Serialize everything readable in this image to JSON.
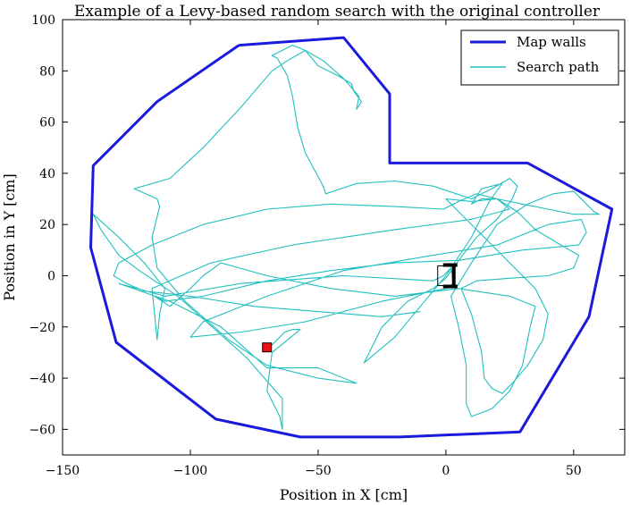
{
  "chart_data": {
    "type": "line",
    "title": "Example of a Levy-based random search with the original controller",
    "xlabel": "Position in X [cm]",
    "ylabel": "Position in Y [cm]",
    "xlim": [
      -150,
      70
    ],
    "ylim": [
      -70,
      100
    ],
    "xticks": [
      -150,
      -100,
      -50,
      0,
      50
    ],
    "yticks": [
      -60,
      -40,
      -20,
      0,
      20,
      40,
      60,
      80,
      100
    ],
    "grid": false,
    "legend_position": "top-right",
    "colors": {
      "walls": "#1a1adc",
      "path": "#20bfbf",
      "start": "#ee1111",
      "robot": "#000000"
    },
    "series": [
      {
        "name": "Map walls",
        "points": [
          [
            -81,
            90
          ],
          [
            -40,
            93
          ],
          [
            -22,
            71
          ],
          [
            -22,
            44
          ],
          [
            32,
            44
          ],
          [
            65,
            26
          ],
          [
            56,
            -16
          ],
          [
            29,
            -61
          ],
          [
            -18,
            -63
          ],
          [
            -57,
            -63
          ],
          [
            -90,
            -56
          ],
          [
            -129,
            -26
          ],
          [
            -139,
            11
          ],
          [
            -138,
            43
          ],
          [
            -113,
            68
          ],
          [
            -81,
            90
          ]
        ]
      },
      {
        "name": "Search path",
        "points": [
          [
            -70,
            -28
          ],
          [
            -68,
            -27
          ],
          [
            -66,
            -25
          ],
          [
            -63,
            -22
          ],
          [
            -60,
            -21
          ],
          [
            -57,
            -21
          ],
          [
            -68,
            -30
          ],
          [
            -70,
            -45
          ],
          [
            -65,
            -55
          ],
          [
            -64,
            -60
          ],
          [
            -64,
            -48
          ],
          [
            -78,
            -32
          ],
          [
            -105,
            -8
          ],
          [
            -120,
            2
          ],
          [
            -128,
            8
          ],
          [
            -135,
            18
          ],
          [
            -138,
            24
          ],
          [
            -128,
            15
          ],
          [
            -118,
            5
          ],
          [
            -110,
            -5
          ],
          [
            -112,
            -15
          ],
          [
            -113,
            -25
          ],
          [
            -115,
            -5
          ],
          [
            -92,
            5
          ],
          [
            -60,
            12
          ],
          [
            -20,
            18
          ],
          [
            10,
            22
          ],
          [
            25,
            26
          ],
          [
            20,
            30
          ],
          [
            14,
            30
          ],
          [
            10,
            28
          ],
          [
            14,
            34
          ],
          [
            22,
            36
          ],
          [
            17,
            29
          ],
          [
            10,
            15
          ],
          [
            0,
            0
          ],
          [
            -10,
            -12
          ],
          [
            -20,
            -24
          ],
          [
            -32,
            -34
          ],
          [
            -25,
            -20
          ],
          [
            -15,
            -10
          ],
          [
            -5,
            -5
          ],
          [
            0,
            -1
          ],
          [
            5,
            6
          ],
          [
            12,
            15
          ],
          [
            20,
            22
          ],
          [
            26,
            30
          ],
          [
            28,
            35
          ],
          [
            25,
            38
          ],
          [
            18,
            34
          ],
          [
            10,
            30
          ],
          [
            -5,
            35
          ],
          [
            -20,
            37
          ],
          [
            -35,
            36
          ],
          [
            -47,
            32
          ],
          [
            -48,
            35
          ],
          [
            -55,
            48
          ],
          [
            -58,
            58
          ],
          [
            -60,
            70
          ],
          [
            -62,
            78
          ],
          [
            -66,
            85
          ],
          [
            -68,
            86
          ],
          [
            -60,
            90
          ],
          [
            -55,
            88
          ],
          [
            -50,
            82
          ],
          [
            -42,
            78
          ],
          [
            -37,
            75
          ],
          [
            -36,
            72
          ],
          [
            -33,
            68
          ],
          [
            -35,
            65
          ],
          [
            -34,
            70
          ],
          [
            -40,
            77
          ],
          [
            -48,
            84
          ],
          [
            -55,
            88
          ],
          [
            -62,
            84
          ],
          [
            -68,
            80
          ],
          [
            -80,
            66
          ],
          [
            -95,
            50
          ],
          [
            -108,
            38
          ],
          [
            -122,
            34
          ],
          [
            -113,
            30
          ],
          [
            -112,
            27
          ],
          [
            -115,
            15
          ],
          [
            -113,
            3
          ],
          [
            -108,
            -3
          ],
          [
            -102,
            -10
          ],
          [
            -85,
            -25
          ],
          [
            -70,
            -35
          ],
          [
            -50,
            -40
          ],
          [
            -35,
            -42
          ],
          [
            -50,
            -36
          ],
          [
            -70,
            -36
          ],
          [
            -88,
            -20
          ],
          [
            -108,
            -10
          ],
          [
            -128,
            -3
          ],
          [
            -110,
            -8
          ],
          [
            -80,
            -3
          ],
          [
            -40,
            0
          ],
          [
            -5,
            -2
          ],
          [
            -1,
            0
          ],
          [
            2,
            3
          ],
          [
            3,
            -3
          ],
          [
            0,
            -5
          ],
          [
            -25,
            -10
          ],
          [
            -55,
            -18
          ],
          [
            -80,
            -22
          ],
          [
            -100,
            -24
          ],
          [
            -95,
            -18
          ],
          [
            -70,
            -8
          ],
          [
            -40,
            2
          ],
          [
            -5,
            8
          ],
          [
            20,
            12
          ],
          [
            40,
            20
          ],
          [
            53,
            22
          ],
          [
            55,
            17
          ],
          [
            52,
            12
          ],
          [
            30,
            10
          ],
          [
            5,
            6
          ],
          [
            -20,
            5
          ],
          [
            -45,
            2
          ],
          [
            -70,
            -2
          ],
          [
            -95,
            -8
          ],
          [
            -110,
            -10
          ],
          [
            -114,
            -8
          ],
          [
            -108,
            -12
          ],
          [
            -100,
            -5
          ],
          [
            -95,
            0
          ],
          [
            -88,
            5
          ],
          [
            -70,
            0
          ],
          [
            -45,
            -5
          ],
          [
            -20,
            -8
          ],
          [
            5,
            -5
          ],
          [
            25,
            -8
          ],
          [
            35,
            -12
          ],
          [
            33,
            -20
          ],
          [
            30,
            -35
          ],
          [
            25,
            -45
          ],
          [
            18,
            -52
          ],
          [
            10,
            -55
          ],
          [
            8,
            -50
          ],
          [
            8,
            -35
          ],
          [
            5,
            -20
          ],
          [
            2,
            -8
          ],
          [
            10,
            5
          ],
          [
            20,
            20
          ],
          [
            32,
            28
          ],
          [
            42,
            32
          ],
          [
            50,
            33
          ],
          [
            55,
            28
          ],
          [
            58,
            25
          ],
          [
            60,
            24
          ],
          [
            50,
            24
          ],
          [
            40,
            26
          ],
          [
            30,
            28
          ],
          [
            20,
            30
          ],
          [
            10,
            29
          ],
          [
            0,
            30
          ],
          [
            5,
            25
          ],
          [
            15,
            15
          ],
          [
            25,
            5
          ],
          [
            35,
            -5
          ],
          [
            40,
            -15
          ],
          [
            38,
            -25
          ],
          [
            32,
            -35
          ],
          [
            26,
            -42
          ],
          [
            22,
            -46
          ],
          [
            18,
            -44
          ],
          [
            15,
            -40
          ],
          [
            14,
            -30
          ],
          [
            10,
            -15
          ],
          [
            6,
            -5
          ],
          [
            12,
            -2
          ],
          [
            25,
            -1
          ],
          [
            40,
            0
          ],
          [
            50,
            3
          ],
          [
            52,
            8
          ],
          [
            45,
            12
          ],
          [
            35,
            18
          ],
          [
            28,
            25
          ],
          [
            20,
            30
          ],
          [
            12,
            32
          ],
          [
            5,
            29
          ],
          [
            -1,
            26
          ],
          [
            -20,
            27
          ],
          [
            -45,
            28
          ],
          [
            -70,
            26
          ],
          [
            -95,
            20
          ],
          [
            -115,
            12
          ],
          [
            -128,
            5
          ],
          [
            -130,
            0
          ],
          [
            -125,
            -3
          ],
          [
            -118,
            -6
          ],
          [
            -100,
            -8
          ],
          [
            -75,
            -12
          ],
          [
            -50,
            -14
          ],
          [
            -25,
            -16
          ],
          [
            -10,
            -14
          ]
        ]
      }
    ],
    "markers": [
      {
        "name": "start",
        "label": "",
        "x": -70,
        "y": -28
      },
      {
        "name": "robot",
        "label": "",
        "x": 1,
        "y": 0
      }
    ]
  }
}
